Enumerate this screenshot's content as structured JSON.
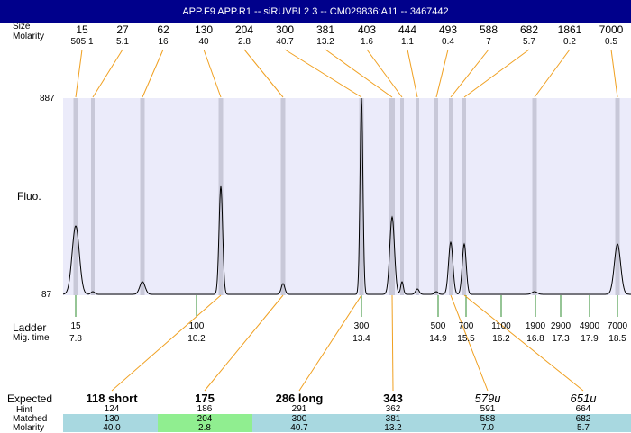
{
  "window": {
    "title": "APP.F9  APP.R1 -- siRUVBL2 3 -- CM029836:A11 -- 3467442"
  },
  "labels": {
    "size_row": "Size",
    "molarity_row": "Molarity",
    "fluo": "Fluo.",
    "ladder": "Ladder",
    "mig_time": "Mig. time",
    "y_top": "887",
    "y_bottom": "87",
    "expected": "Expected",
    "hint": "Hint",
    "matched": "Matched",
    "molarity_bottom": "Molarity"
  },
  "colors": {
    "title_bg": "#00008b",
    "plot_bg": "#ebebfa",
    "band": "#c8c8d8",
    "orange_line": "#f0a020",
    "green_tick": "#2e8b2e",
    "matched_bg": "#a8d8e0",
    "matched_highlight": "#90ee90"
  },
  "top_sizes": [
    {
      "size": "15",
      "molarity": "505.1"
    },
    {
      "size": "27",
      "molarity": "5.1"
    },
    {
      "size": "62",
      "molarity": "16"
    },
    {
      "size": "130",
      "molarity": "40"
    },
    {
      "size": "204",
      "molarity": "2.8"
    },
    {
      "size": "300",
      "molarity": "40.7"
    },
    {
      "size": "381",
      "molarity": "13.2"
    },
    {
      "size": "403",
      "molarity": "1.6"
    },
    {
      "size": "444",
      "molarity": "1.1"
    },
    {
      "size": "493",
      "molarity": "0.4"
    },
    {
      "size": "588",
      "molarity": "7"
    },
    {
      "size": "682",
      "molarity": "5.7"
    },
    {
      "size": "1861",
      "molarity": "0.2"
    },
    {
      "size": "7000",
      "molarity": "0.5"
    }
  ],
  "ladder": [
    {
      "size": "15",
      "time": "7.8"
    },
    {
      "size": "100",
      "time": "10.2"
    },
    {
      "size": "300",
      "time": "13.4"
    },
    {
      "size": "500",
      "time": "14.9"
    },
    {
      "size": "700",
      "time": "15.5"
    },
    {
      "size": "1100",
      "time": "16.2"
    },
    {
      "size": "1900",
      "time": "16.8"
    },
    {
      "size": "2900",
      "time": "17.3"
    },
    {
      "size": "4900",
      "time": "17.9"
    },
    {
      "size": "7000",
      "time": "18.5"
    }
  ],
  "expected": [
    {
      "label": "118 short",
      "hint": "124",
      "matched": "130",
      "molarity": "40.0"
    },
    {
      "label": "175",
      "hint": "186",
      "matched": "204",
      "molarity": "2.8"
    },
    {
      "label": "286 long",
      "hint": "291",
      "matched": "300",
      "molarity": "40.7"
    },
    {
      "label": "343",
      "hint": "362",
      "matched": "381",
      "molarity": "13.2"
    },
    {
      "label": "579u",
      "hint": "591",
      "matched": "588",
      "molarity": "7.0"
    },
    {
      "label": "651u",
      "hint": "664",
      "matched": "682",
      "molarity": "5.7"
    }
  ]
}
